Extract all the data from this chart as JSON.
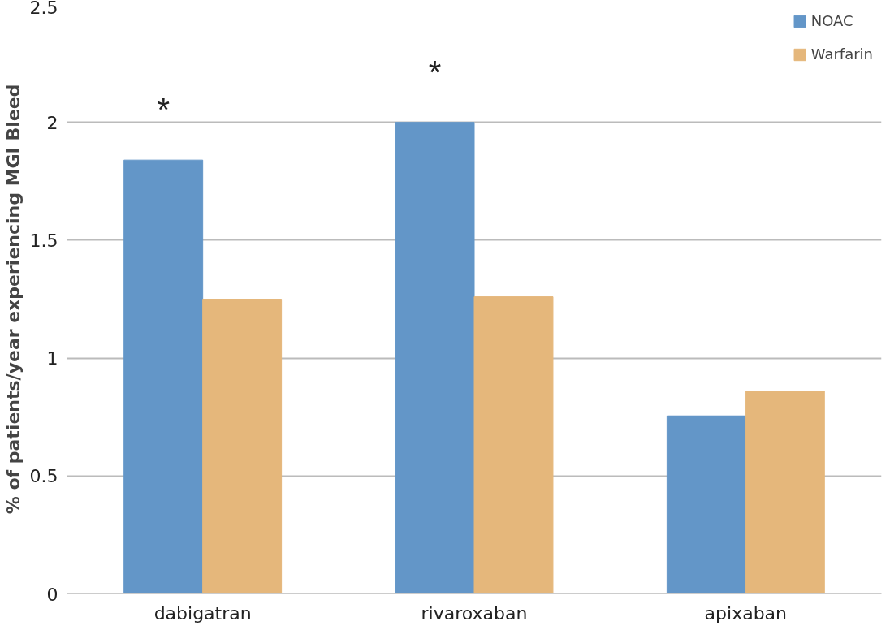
{
  "chart_data": {
    "type": "bar",
    "ylabel": "% of patients/year experiencing MGI Bleed",
    "categories": [
      "dabigatran",
      "rivaroxaban",
      "apixaban"
    ],
    "series": [
      {
        "name": "NOAC",
        "color": "#6396c8",
        "values": [
          1.84,
          2.0,
          0.755
        ]
      },
      {
        "name": "Warfarin",
        "color": "#e5b77b",
        "values": [
          1.25,
          1.26,
          0.86
        ]
      }
    ],
    "ylim": [
      0,
      2.5
    ],
    "yticks": [
      0,
      0.5,
      1,
      1.5,
      2,
      2.5
    ],
    "grid": "y",
    "legend": "top right",
    "annotations": [
      "*",
      "*"
    ]
  }
}
